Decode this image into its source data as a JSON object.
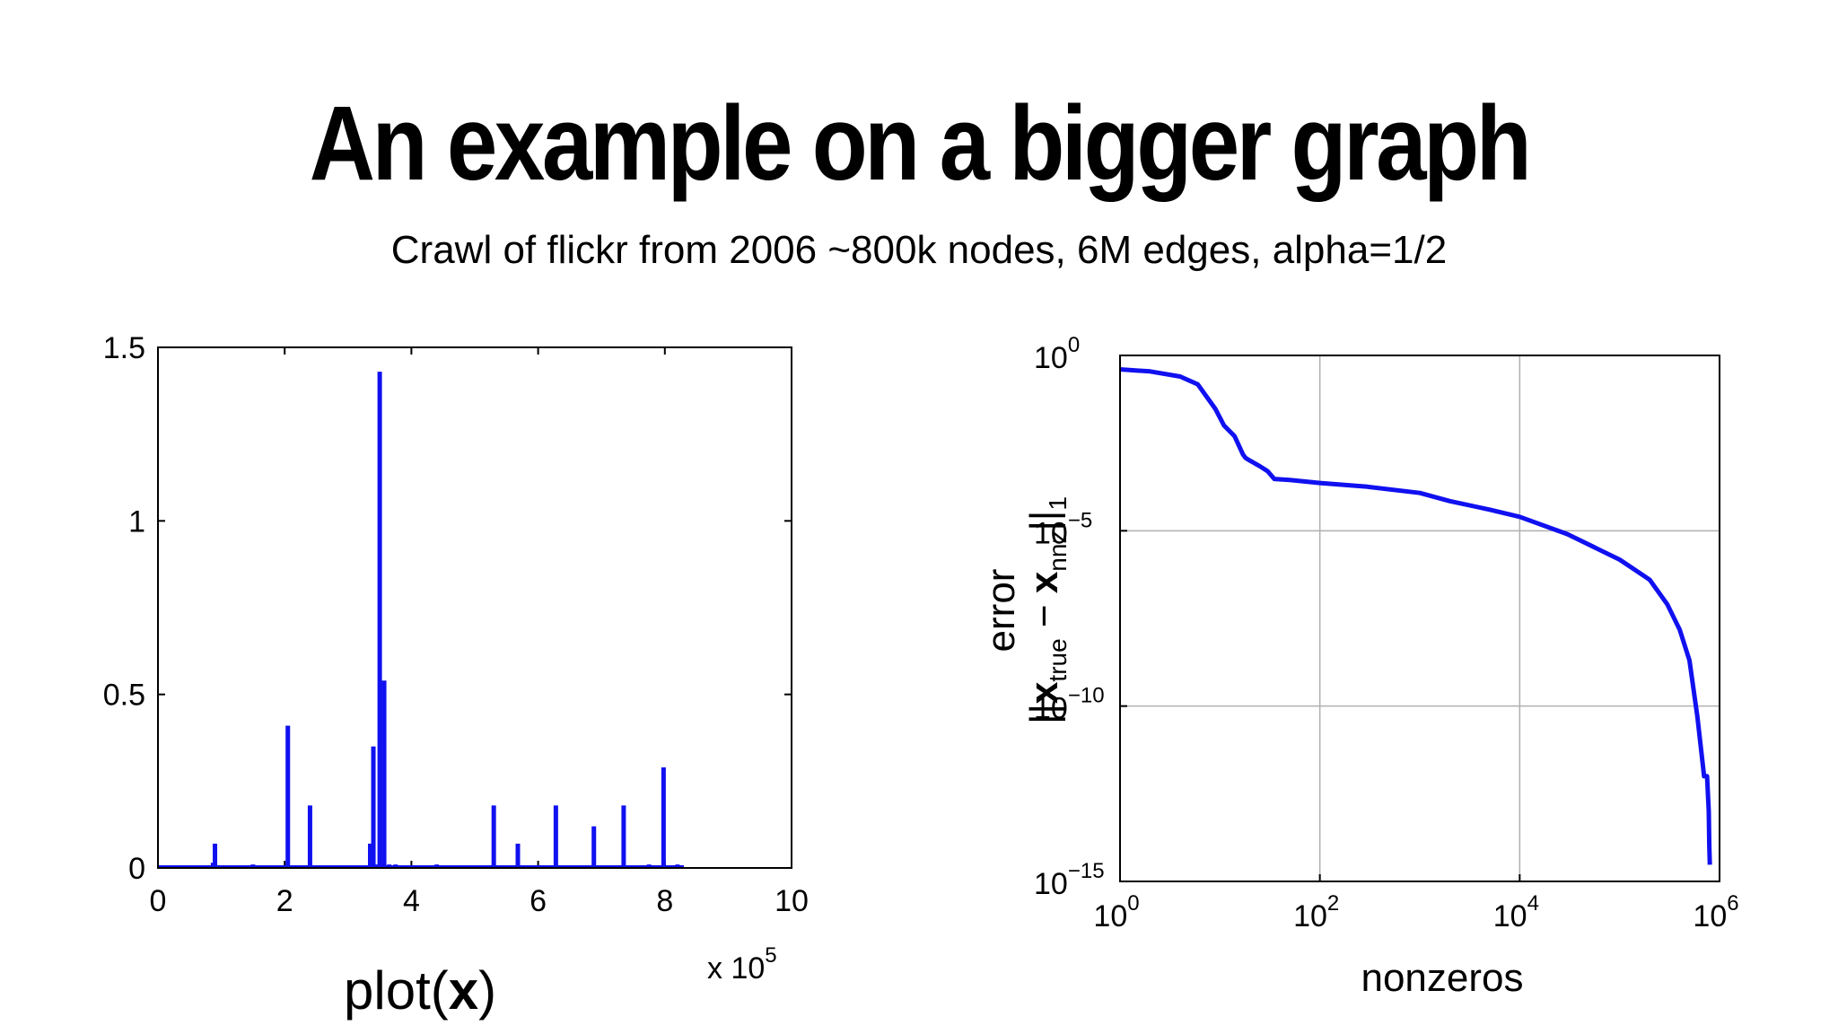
{
  "slide": {
    "title": "An example on a bigger graph",
    "subtitle": "Crawl of flickr from 2006 ~800k nodes, 6M edges, alpha=1/2"
  },
  "colors": {
    "series": "#1010f0",
    "grid": "#b0b0b0",
    "axis": "#000000"
  },
  "chart_data": [
    {
      "type": "bar",
      "caption_text": "plot(",
      "caption_bold": "x",
      "caption_close": ")",
      "xlim": [
        0,
        10
      ],
      "ylim": [
        0,
        1.5
      ],
      "x_ticks": [
        0,
        2,
        4,
        6,
        8,
        10
      ],
      "y_ticks": [
        0,
        0.5,
        1,
        1.5
      ],
      "x_tick_labels": [
        "0",
        "2",
        "4",
        "6",
        "8",
        "10"
      ],
      "y_tick_labels": [
        "0",
        "0.5",
        "1",
        "1.5"
      ],
      "x_multiplier_base": "x 10",
      "x_multiplier_exp": "5",
      "grid": false,
      "series": [
        {
          "x": [
            0.87,
            0.9,
            1.5,
            2.05,
            2.4,
            3.0,
            3.35,
            3.4,
            3.45,
            3.5,
            3.57,
            3.65,
            3.75,
            4.4,
            5.3,
            5.68,
            6.28,
            6.88,
            7.35,
            7.75,
            7.98,
            8.2
          ],
          "values": [
            0.015,
            0.07,
            0.01,
            0.41,
            0.18,
            0.005,
            0.07,
            0.35,
            0.01,
            1.43,
            0.54,
            0.01,
            0.01,
            0.01,
            0.18,
            0.07,
            0.18,
            0.12,
            0.18,
            0.01,
            0.29,
            0.01
          ]
        }
      ]
    },
    {
      "type": "line",
      "log_x": true,
      "log_y": true,
      "xlim": [
        1,
        1000000
      ],
      "ylim": [
        1e-15,
        1
      ],
      "x_ticks": [
        1,
        100,
        10000,
        1000000
      ],
      "y_ticks": [
        1e-15,
        1e-10,
        1e-05,
        1
      ],
      "x_tick_base": [
        "10",
        "10",
        "10",
        "10"
      ],
      "x_tick_exp": [
        "0",
        "2",
        "4",
        "6"
      ],
      "y_tick_base": [
        "10",
        "10",
        "10",
        "10"
      ],
      "y_tick_exp": [
        "−15",
        "−10",
        "−5",
        "0"
      ],
      "xlabel": "nonzeros",
      "ylabel_top": "error",
      "ylabel_norm_left": "||",
      "ylabel_x1": "x",
      "ylabel_sub1": "true",
      "ylabel_minus": " − ",
      "ylabel_x2": "x",
      "ylabel_sub2": "nnz",
      "ylabel_norm_right": "||",
      "ylabel_sub3": "1",
      "grid": true,
      "series": [
        {
          "x": [
            1,
            2,
            4,
            6,
            9,
            11,
            14,
            17,
            18,
            20,
            25,
            30,
            35,
            50,
            100,
            300,
            1000,
            2000,
            5000,
            10000,
            30000,
            100000,
            200000,
            300000,
            400000,
            500000,
            600000,
            700000,
            750000,
            780000,
            790000,
            800000
          ],
          "values": [
            0.4,
            0.35,
            0.25,
            0.15,
            0.03,
            0.01,
            0.005,
            0.0015,
            0.0012,
            0.001,
            0.0007,
            0.0005,
            0.0003,
            0.00028,
            0.00023,
            0.00018,
            0.00012,
            7e-05,
            4e-05,
            2.5e-05,
            8e-06,
            1.5e-06,
            4e-07,
            8e-08,
            1.5e-08,
            2e-09,
            5e-11,
            1e-12,
            1e-12,
            1e-13,
            1e-14,
            3e-15
          ]
        }
      ]
    }
  ]
}
